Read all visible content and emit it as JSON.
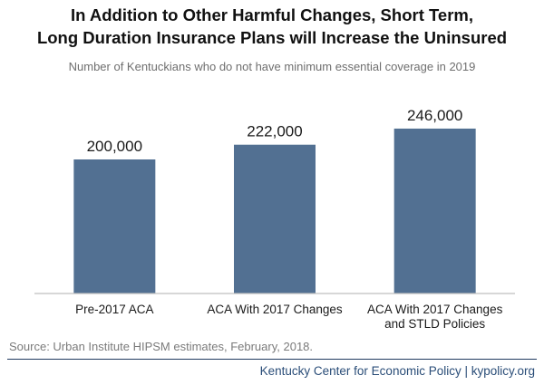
{
  "title_line1": "In Addition to Other Harmful Changes, Short Term,",
  "title_line2": "Long Duration Insurance Plans will Increase the Uninsured",
  "subtitle": "Number  of Kentuckians who do not have minimum  essential coverage in 2019",
  "source": "Source: Urban Institute HIPSM estimates, February, 2018.",
  "footer": "Kentucky Center for Economic Policy | kypolicy.org",
  "colors": {
    "bar": "#527092",
    "axis": "#bfbfbf",
    "footer_line": "#1f3a5f",
    "footer_text": "#2a4d78"
  },
  "chart_data": {
    "type": "bar",
    "categories": [
      [
        "Pre-2017 ACA"
      ],
      [
        "ACA With 2017 Changes"
      ],
      [
        "ACA With 2017 Changes",
        "and STLD Policies"
      ]
    ],
    "values": [
      200000,
      222000,
      246000
    ],
    "data_labels": [
      "200,000",
      "222,000",
      "246,000"
    ],
    "title": "In Addition to Other Harmful Changes, Short Term, Long Duration Insurance Plans will Increase the Uninsured",
    "xlabel": "",
    "ylabel": "",
    "ylim": [
      0,
      300000
    ],
    "grid": false,
    "legend": "none"
  }
}
